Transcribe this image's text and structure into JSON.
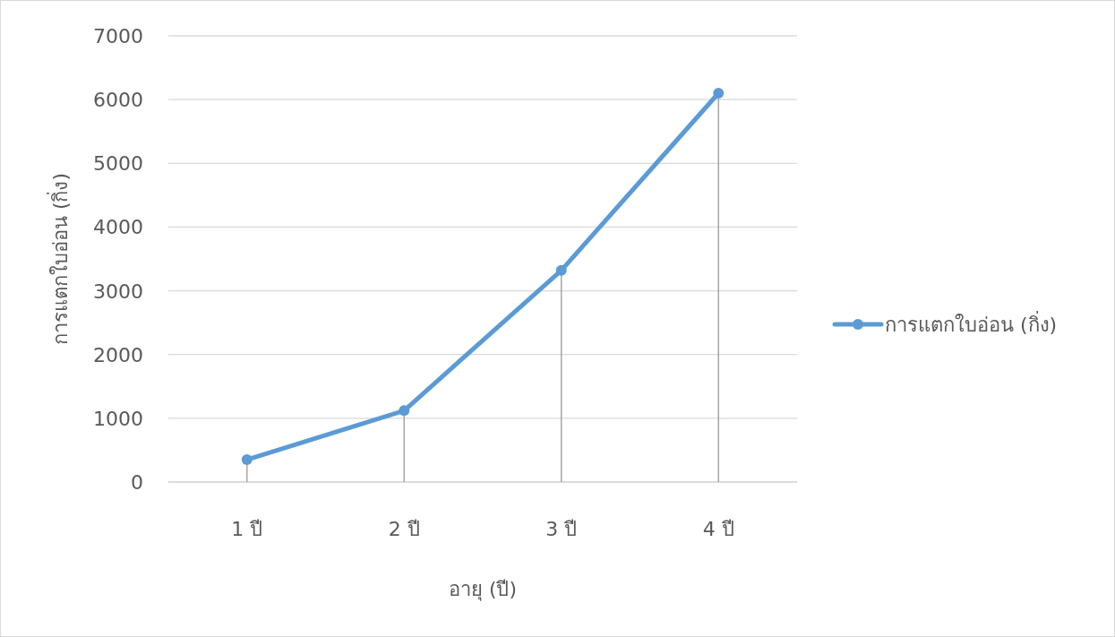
{
  "chart_data": {
    "type": "line",
    "xlabel": "อายุ (ปี)",
    "ylabel": "การแตกใบอ่อน (กิ่ง)",
    "categories": [
      "1 ปี",
      "2 ปี",
      "3 ปี",
      "4 ปี"
    ],
    "series": [
      {
        "name": "การแตกใบอ่อน (กิ่ง)",
        "color": "#5b9bd5",
        "values": [
          350,
          1120,
          3320,
          6100
        ],
        "errors": [
          [
            0,
            350
          ],
          [
            0,
            1120
          ],
          [
            0,
            3320
          ],
          [
            0,
            6100
          ]
        ]
      }
    ],
    "ylim": [
      0,
      7000
    ],
    "yticks": [
      0,
      1000,
      2000,
      3000,
      4000,
      5000,
      6000,
      7000
    ],
    "grid": "y",
    "legend": "right",
    "marker": "circle"
  }
}
